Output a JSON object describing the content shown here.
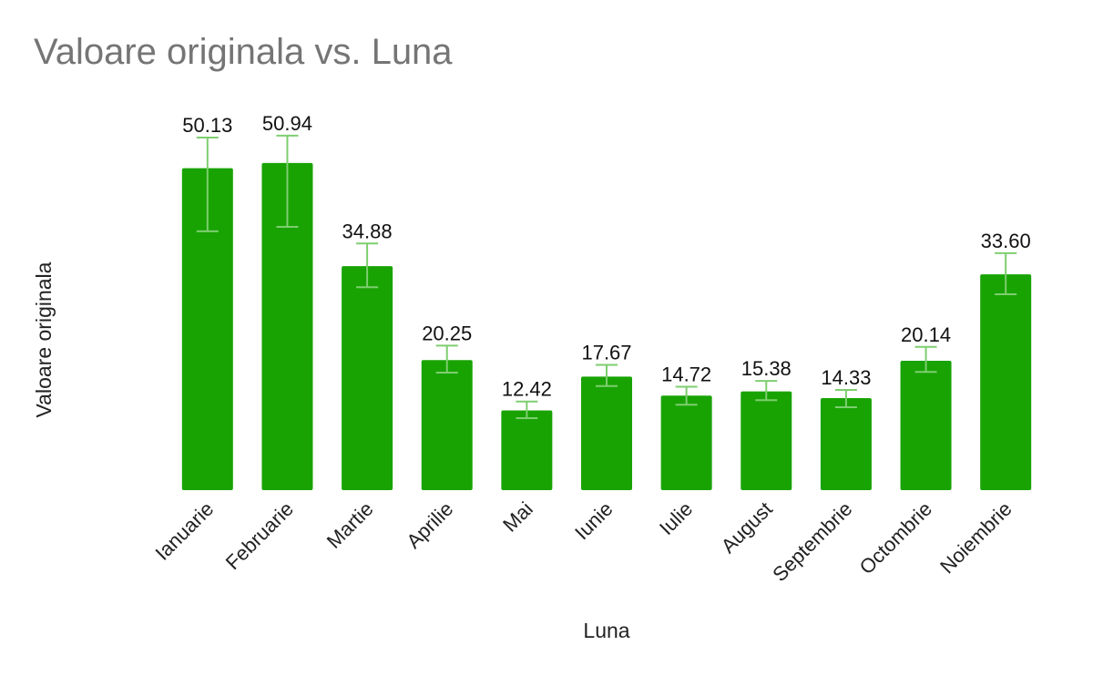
{
  "chart_data": {
    "type": "bar",
    "title": "Valoare originala vs. Luna",
    "xlabel": "Luna",
    "ylabel": "Valoare originala",
    "categories": [
      "Ianuarie",
      "Februarie",
      "Martie",
      "Aprilie",
      "Mai",
      "Iunie",
      "Iulie",
      "August",
      "Septembrie",
      "Octombrie",
      "Noiembrie"
    ],
    "values": [
      50.13,
      50.94,
      34.88,
      20.25,
      12.42,
      17.67,
      14.72,
      15.38,
      14.33,
      20.14,
      33.6
    ],
    "value_labels": [
      "50.13",
      "50.94",
      "34.88",
      "20.25",
      "12.42",
      "17.67",
      "14.72",
      "15.38",
      "14.33",
      "20.14",
      "33.60"
    ],
    "error_bars": [
      [
        40.3,
        54.9
      ],
      [
        41.0,
        55.2
      ],
      [
        31.6,
        38.4
      ],
      [
        18.3,
        22.5
      ],
      [
        11.2,
        13.8
      ],
      [
        16.2,
        19.5
      ],
      [
        13.3,
        16.1
      ],
      [
        14.0,
        17.0
      ],
      [
        12.9,
        15.6
      ],
      [
        18.4,
        22.3
      ],
      [
        30.5,
        36.9
      ]
    ],
    "ylim": [
      0,
      60
    ],
    "grid": false,
    "legend": "none",
    "colors": {
      "bar": "#18a303",
      "error_bar": "#7ece6f",
      "title": "#757575",
      "text": "#222222"
    }
  }
}
